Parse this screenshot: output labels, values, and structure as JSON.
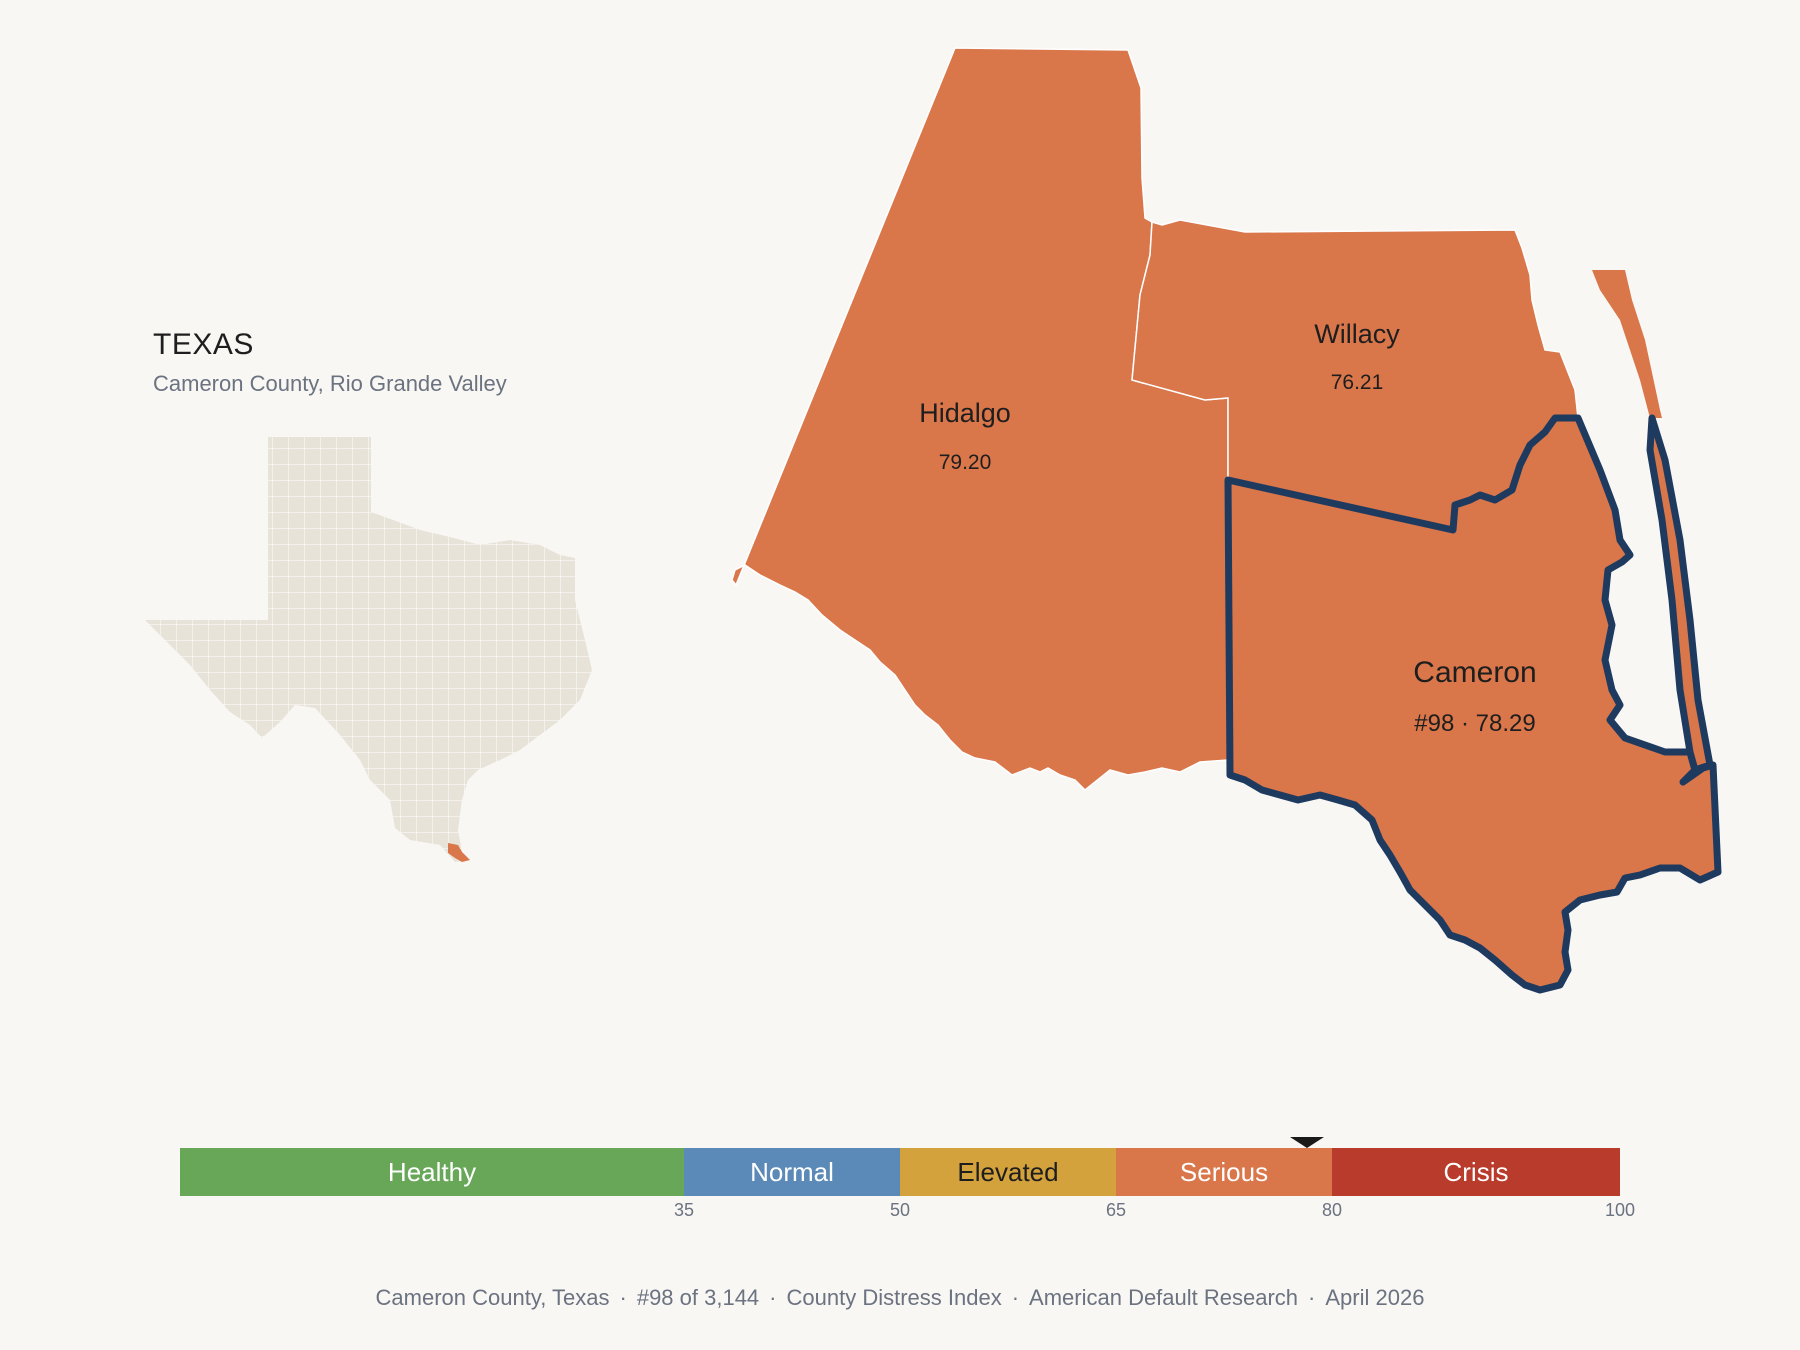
{
  "inset": {
    "state_label": "TEXAS",
    "subtitle": "Cameron County, Rio Grande Valley"
  },
  "map": {
    "counties": [
      {
        "name": "Hidalgo",
        "value": "79.20"
      },
      {
        "name": "Willacy",
        "value": "76.21"
      },
      {
        "name": "Cameron",
        "value": "#98 · 78.29",
        "highlighted": true
      }
    ],
    "fill_color": "#d9764a",
    "outline_color": "#1f3a5f",
    "inset_fill": "#e8e3d9",
    "inset_highlight": "#d9764a"
  },
  "scale": {
    "bands": [
      {
        "label": "Healthy",
        "from": 0,
        "to": 35,
        "color": "#68a758",
        "text_color": "#ffffff"
      },
      {
        "label": "Normal",
        "from": 35,
        "to": 50,
        "color": "#5b8ab8",
        "text_color": "#ffffff"
      },
      {
        "label": "Elevated",
        "from": 50,
        "to": 65,
        "color": "#d4a23c",
        "text_color": "#1e1e1e"
      },
      {
        "label": "Serious",
        "from": 65,
        "to": 80,
        "color": "#d9764a",
        "text_color": "#ffffff"
      },
      {
        "label": "Crisis",
        "from": 80,
        "to": 100,
        "color": "#b83b2c",
        "text_color": "#ffffff"
      }
    ],
    "ticks": [
      "35",
      "50",
      "65",
      "80",
      "100"
    ],
    "marker_value": 78.29
  },
  "footer": {
    "parts": [
      "Cameron County, Texas",
      "#98 of 3,144",
      "County Distress Index",
      "American Default Research",
      "April 2026"
    ]
  }
}
